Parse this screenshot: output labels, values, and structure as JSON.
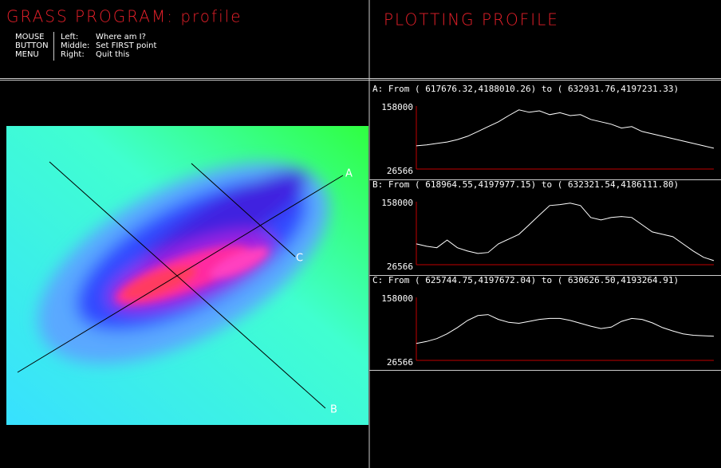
{
  "header": {
    "title": "GRASS PROGRAM: profile",
    "mouse_menu": {
      "label": [
        "MOUSE",
        "BUTTON",
        "MENU"
      ],
      "options": [
        [
          "Left:",
          "Where am I?"
        ],
        [
          "Middle:",
          "Set FIRST point"
        ],
        [
          "Right:",
          "Quit this"
        ]
      ]
    }
  },
  "plot_header": "PLOTTING PROFILE",
  "map": {
    "line_labels": [
      "A",
      "B",
      "C"
    ]
  },
  "profiles": [
    {
      "caption": "A: From ( 617676.32,4188010.26) to ( 632931.76,4197231.33)",
      "ymax": 158000,
      "ymin": 26566,
      "values": [
        75000,
        77000,
        80000,
        83000,
        88000,
        95000,
        105000,
        115000,
        125000,
        138000,
        150000,
        145000,
        148000,
        140000,
        144000,
        138000,
        140000,
        130000,
        125000,
        120000,
        112000,
        115000,
        105000,
        100000,
        95000,
        90000,
        85000,
        80000,
        75000,
        70000
      ]
    },
    {
      "caption": "B: From ( 618964.55,4197977.15) to ( 632321.54,4186111.80)",
      "ymax": 158000,
      "ymin": 26566,
      "values": [
        70000,
        65000,
        62000,
        78000,
        62000,
        55000,
        50000,
        52000,
        70000,
        80000,
        90000,
        110000,
        130000,
        150000,
        152000,
        155000,
        150000,
        125000,
        120000,
        125000,
        127000,
        125000,
        110000,
        95000,
        90000,
        85000,
        70000,
        55000,
        42000,
        35000
      ]
    },
    {
      "caption": "C: From ( 625744.75,4197672.04) to ( 630626.50,4193264.91)",
      "ymax": 158000,
      "ymin": 26566,
      "values": [
        62000,
        66000,
        72000,
        82000,
        95000,
        110000,
        120000,
        122000,
        112000,
        106000,
        104000,
        108000,
        112000,
        114000,
        114000,
        110000,
        104000,
        98000,
        93000,
        96000,
        108000,
        114000,
        112000,
        105000,
        95000,
        88000,
        82000,
        79000,
        78000,
        77000
      ]
    }
  ]
}
